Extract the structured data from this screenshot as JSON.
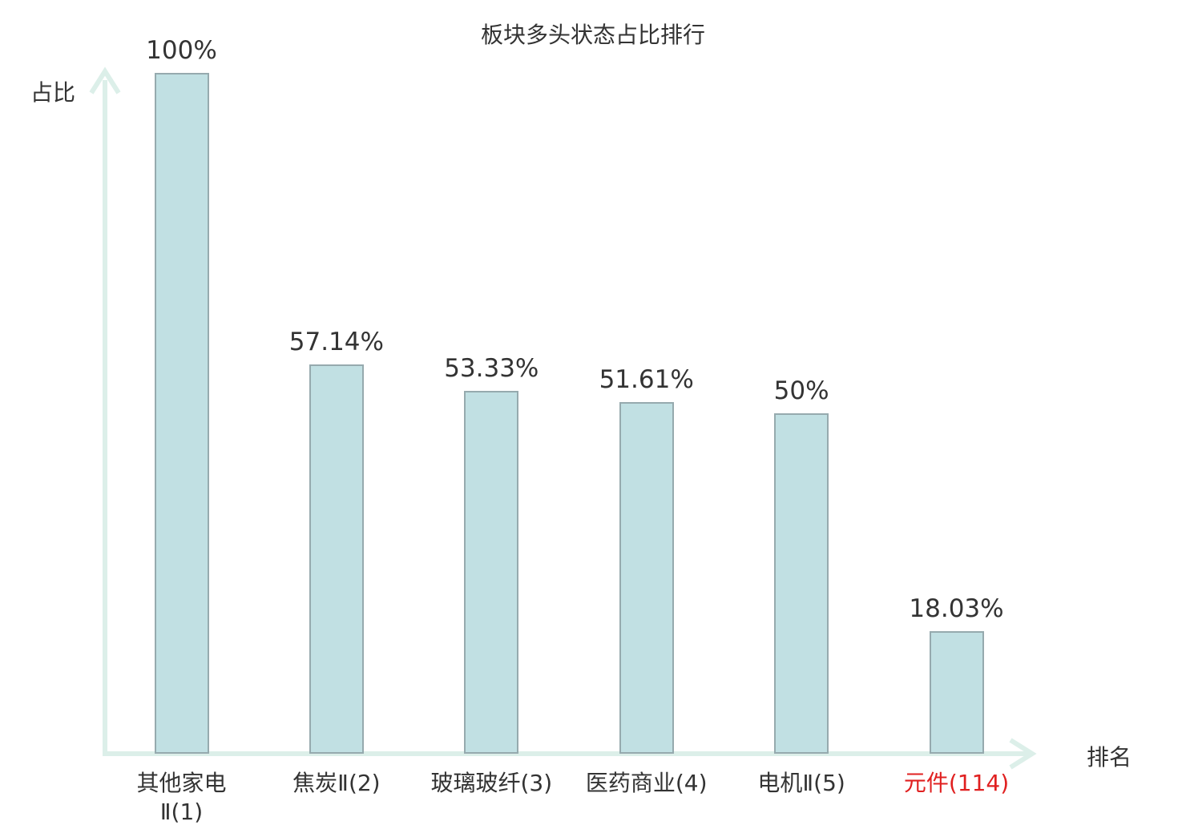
{
  "title": "板块多头状态占比排行",
  "axes": {
    "y_label": "占比",
    "x_label": "排名"
  },
  "colors": {
    "bar_fill": "#c1e0e3",
    "bar_border": "#96aaae",
    "axis": "#dcefe9",
    "text": "#333333",
    "highlight": "#e02020"
  },
  "chart_data": {
    "type": "bar",
    "title": "板块多头状态占比排行",
    "xlabel": "排名",
    "ylabel": "占比",
    "ylim": [
      0,
      100
    ],
    "grid": false,
    "legend": false,
    "categories": [
      "其他家电Ⅱ(1)",
      "焦炭Ⅱ(2)",
      "玻璃玻纤(3)",
      "医药商业(4)",
      "电机Ⅱ(5)",
      "元件(114)"
    ],
    "category_label_lines": [
      [
        "其他家电",
        "Ⅱ(1)"
      ],
      [
        "焦炭Ⅱ(2)"
      ],
      [
        "玻璃玻纤(3)"
      ],
      [
        "医药商业(4)"
      ],
      [
        "电机Ⅱ(5)"
      ],
      [
        "元件(114)"
      ]
    ],
    "values": [
      100,
      57.14,
      53.33,
      51.61,
      50,
      18.03
    ],
    "value_labels": [
      "100%",
      "57.14%",
      "53.33%",
      "51.61%",
      "50%",
      "18.03%"
    ],
    "highlight_index": 5
  }
}
